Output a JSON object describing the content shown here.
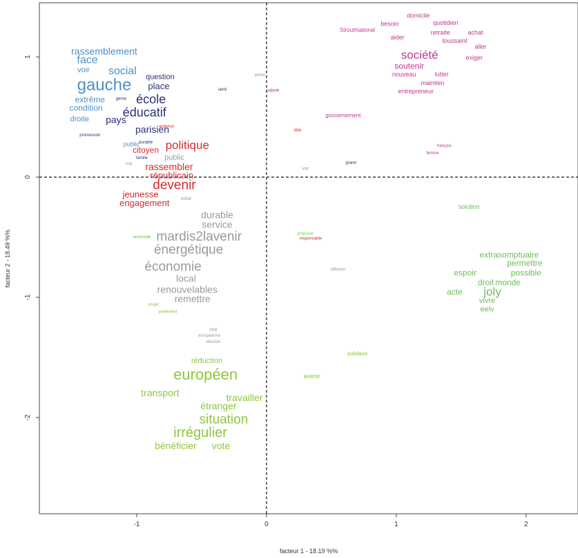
{
  "chart_data": {
    "type": "scatter",
    "title": "",
    "xlabel": "facteur 1 - 18.19 %%",
    "ylabel": "facteur 2 - 18.49 %%",
    "xlim": [
      -1.75,
      2.4
    ],
    "ylim": [
      -2.8,
      1.45
    ],
    "x_ticks": [
      -1,
      0,
      1,
      2
    ],
    "y_ticks": [
      1,
      0,
      -1,
      -2
    ],
    "x_tick_labels": [
      "-1",
      "0",
      "1",
      "2"
    ],
    "y_tick_labels": [
      "1",
      "0",
      "-1",
      "-2"
    ],
    "reference_lines": {
      "x": 0,
      "y": 0,
      "style": "dashed"
    },
    "grid": false,
    "colors": {
      "blue": "#4a90c8",
      "navy": "#2a2f7a",
      "red": "#d42b2b",
      "gray": "#9a9a9a",
      "magenta": "#c2388f",
      "lightgreen": "#6dbb5a",
      "green": "#8ec63f"
    },
    "words": [
      {
        "text": "rassemblement",
        "x": -1.25,
        "y": 1.04,
        "size": 14,
        "color": "blue"
      },
      {
        "text": "face",
        "x": -1.38,
        "y": 0.97,
        "size": 16,
        "color": "blue"
      },
      {
        "text": "social",
        "x": -1.11,
        "y": 0.88,
        "size": 16,
        "color": "blue"
      },
      {
        "text": "voir",
        "x": -1.41,
        "y": 0.89,
        "size": 11,
        "color": "blue"
      },
      {
        "text": "gauche",
        "x": -1.25,
        "y": 0.76,
        "size": 24,
        "color": "blue"
      },
      {
        "text": "question",
        "x": -0.82,
        "y": 0.83,
        "size": 11,
        "color": "navy"
      },
      {
        "text": "place",
        "x": -0.83,
        "y": 0.75,
        "size": 13,
        "color": "navy"
      },
      {
        "text": "extrême",
        "x": -1.36,
        "y": 0.64,
        "size": 12,
        "color": "blue"
      },
      {
        "text": "genre",
        "x": -1.12,
        "y": 0.65,
        "size": 6,
        "color": "navy"
      },
      {
        "text": "école",
        "x": -0.89,
        "y": 0.64,
        "size": 18,
        "color": "navy"
      },
      {
        "text": "condition",
        "x": -1.39,
        "y": 0.57,
        "size": 12,
        "color": "blue"
      },
      {
        "text": "éducatif",
        "x": -0.94,
        "y": 0.53,
        "size": 18,
        "color": "navy"
      },
      {
        "text": "droite",
        "x": -1.44,
        "y": 0.48,
        "size": 11,
        "color": "blue"
      },
      {
        "text": "pays",
        "x": -1.16,
        "y": 0.47,
        "size": 14,
        "color": "navy"
      },
      {
        "text": "parisien",
        "x": -0.88,
        "y": 0.39,
        "size": 14,
        "color": "navy"
      },
      {
        "text": "promouvoir",
        "x": -1.36,
        "y": 0.35,
        "size": 6,
        "color": "navy"
      },
      {
        "text": "violence",
        "x": -0.77,
        "y": 0.42,
        "size": 6,
        "color": "red"
      },
      {
        "text": "public",
        "x": -1.04,
        "y": 0.27,
        "size": 9,
        "color": "blue"
      },
      {
        "text": "durable",
        "x": -0.93,
        "y": 0.29,
        "size": 6,
        "color": "navy"
      },
      {
        "text": "politique",
        "x": -0.61,
        "y": 0.26,
        "size": 17,
        "color": "red"
      },
      {
        "text": "citoyen",
        "x": -0.93,
        "y": 0.22,
        "size": 12,
        "color": "red"
      },
      {
        "text": "famille",
        "x": -0.96,
        "y": 0.16,
        "size": 6,
        "color": "navy"
      },
      {
        "text": "public",
        "x": -0.71,
        "y": 0.16,
        "size": 11,
        "color": "gray"
      },
      {
        "text": "mal",
        "x": -1.06,
        "y": 0.11,
        "size": 6,
        "color": "gray"
      },
      {
        "text": "rassembler",
        "x": -0.75,
        "y": 0.08,
        "size": 14,
        "color": "red"
      },
      {
        "text": "républicain",
        "x": -0.73,
        "y": 0.01,
        "size": 13,
        "color": "red"
      },
      {
        "text": "devenir",
        "x": -0.71,
        "y": -0.07,
        "size": 19,
        "color": "red"
      },
      {
        "text": "jeunesse",
        "x": -0.97,
        "y": -0.15,
        "size": 13,
        "color": "red"
      },
      {
        "text": "engagement",
        "x": -0.94,
        "y": -0.22,
        "size": 13,
        "color": "red"
      },
      {
        "text": "débat",
        "x": -0.62,
        "y": -0.18,
        "size": 6,
        "color": "gray"
      },
      {
        "text": "porter",
        "x": -0.05,
        "y": 0.85,
        "size": 6,
        "color": "gray"
      },
      {
        "text": "semi",
        "x": -0.34,
        "y": 0.73,
        "size": 6,
        "color": "navy"
      },
      {
        "text": "salarié",
        "x": 0.05,
        "y": 0.72,
        "size": 6,
        "color": "red"
      },
      {
        "text": "élite",
        "x": 0.24,
        "y": 0.39,
        "size": 6,
        "color": "red"
      },
      {
        "text": "voir",
        "x": 0.3,
        "y": 0.07,
        "size": 6,
        "color": "gray"
      },
      {
        "text": "grand",
        "x": 0.65,
        "y": 0.12,
        "size": 6,
        "color": "navy"
      },
      {
        "text": "domicile",
        "x": 1.17,
        "y": 1.34,
        "size": 9,
        "color": "magenta"
      },
      {
        "text": "besoin",
        "x": 0.95,
        "y": 1.27,
        "size": 9,
        "color": "magenta"
      },
      {
        "text": "quotidien",
        "x": 1.38,
        "y": 1.28,
        "size": 9,
        "color": "magenta"
      },
      {
        "text": "Strouthiational",
        "x": 0.7,
        "y": 1.22,
        "size": 8,
        "color": "magenta"
      },
      {
        "text": "retraite",
        "x": 1.34,
        "y": 1.2,
        "size": 9,
        "color": "magenta"
      },
      {
        "text": "achat",
        "x": 1.61,
        "y": 1.2,
        "size": 9,
        "color": "magenta"
      },
      {
        "text": "aider",
        "x": 1.01,
        "y": 1.16,
        "size": 9,
        "color": "magenta"
      },
      {
        "text": "toussaint",
        "x": 1.45,
        "y": 1.13,
        "size": 9,
        "color": "magenta"
      },
      {
        "text": "aller",
        "x": 1.65,
        "y": 1.08,
        "size": 9,
        "color": "magenta"
      },
      {
        "text": "société",
        "x": 1.18,
        "y": 1.01,
        "size": 17,
        "color": "magenta"
      },
      {
        "text": "exiger",
        "x": 1.6,
        "y": 0.99,
        "size": 9,
        "color": "magenta"
      },
      {
        "text": "soutenir",
        "x": 1.1,
        "y": 0.92,
        "size": 12,
        "color": "magenta"
      },
      {
        "text": "nouveau",
        "x": 1.06,
        "y": 0.85,
        "size": 9,
        "color": "magenta"
      },
      {
        "text": "lutter",
        "x": 1.35,
        "y": 0.85,
        "size": 9,
        "color": "magenta"
      },
      {
        "text": "maintien",
        "x": 1.28,
        "y": 0.78,
        "size": 9,
        "color": "magenta"
      },
      {
        "text": "entrepreneur",
        "x": 1.15,
        "y": 0.71,
        "size": 9,
        "color": "magenta"
      },
      {
        "text": "gouvernement",
        "x": 0.59,
        "y": 0.51,
        "size": 8,
        "color": "magenta"
      },
      {
        "text": "français",
        "x": 1.37,
        "y": 0.26,
        "size": 6,
        "color": "magenta"
      },
      {
        "text": "femme",
        "x": 1.28,
        "y": 0.2,
        "size": 6,
        "color": "magenta"
      },
      {
        "text": "durable",
        "x": -0.38,
        "y": -0.32,
        "size": 14,
        "color": "gray"
      },
      {
        "text": "service",
        "x": -0.38,
        "y": -0.4,
        "size": 14,
        "color": "gray"
      },
      {
        "text": "mardis2lavenir",
        "x": -0.52,
        "y": -0.5,
        "size": 19,
        "color": "gray"
      },
      {
        "text": "énergétique",
        "x": -0.6,
        "y": -0.61,
        "size": 19,
        "color": "gray"
      },
      {
        "text": "économie",
        "x": -0.72,
        "y": -0.75,
        "size": 19,
        "color": "gray"
      },
      {
        "text": "local",
        "x": -0.62,
        "y": -0.85,
        "size": 14,
        "color": "gray"
      },
      {
        "text": "renouvelables",
        "x": -0.61,
        "y": -0.94,
        "size": 14,
        "color": "gray"
      },
      {
        "text": "remettre",
        "x": -0.57,
        "y": -1.02,
        "size": 14,
        "color": "gray"
      },
      {
        "text": "ensemble",
        "x": -0.96,
        "y": -0.5,
        "size": 6,
        "color": "lightgreen"
      },
      {
        "text": "proposer",
        "x": 0.3,
        "y": -0.47,
        "size": 6,
        "color": "green"
      },
      {
        "text": "responsable",
        "x": 0.34,
        "y": -0.51,
        "size": 6,
        "color": "red"
      },
      {
        "text": "différent",
        "x": 0.55,
        "y": -0.77,
        "size": 6,
        "color": "gray"
      },
      {
        "text": "projet",
        "x": -0.87,
        "y": -1.06,
        "size": 6,
        "color": "green"
      },
      {
        "text": "parlement",
        "x": -0.76,
        "y": -1.12,
        "size": 6,
        "color": "green"
      },
      {
        "text": "total",
        "x": -0.41,
        "y": -1.27,
        "size": 6,
        "color": "gray"
      },
      {
        "text": "européenne",
        "x": -0.44,
        "y": -1.32,
        "size": 6,
        "color": "gray"
      },
      {
        "text": "élection",
        "x": -0.41,
        "y": -1.37,
        "size": 6,
        "color": "gray"
      },
      {
        "text": "solution",
        "x": 1.56,
        "y": -0.25,
        "size": 9,
        "color": "lightgreen"
      },
      {
        "text": "extrasomptuaire",
        "x": 1.87,
        "y": -0.65,
        "size": 12,
        "color": "lightgreen"
      },
      {
        "text": "permettre",
        "x": 1.99,
        "y": -0.72,
        "size": 12,
        "color": "lightgreen"
      },
      {
        "text": "espoir",
        "x": 1.53,
        "y": -0.8,
        "size": 12,
        "color": "lightgreen"
      },
      {
        "text": "possible",
        "x": 2.0,
        "y": -0.8,
        "size": 12,
        "color": "lightgreen"
      },
      {
        "text": "droit",
        "x": 1.69,
        "y": -0.88,
        "size": 12,
        "color": "lightgreen"
      },
      {
        "text": "monde",
        "x": 1.86,
        "y": -0.88,
        "size": 12,
        "color": "lightgreen"
      },
      {
        "text": "acte",
        "x": 1.45,
        "y": -0.96,
        "size": 12,
        "color": "lightgreen"
      },
      {
        "text": "joly",
        "x": 1.74,
        "y": -0.96,
        "size": 17,
        "color": "lightgreen"
      },
      {
        "text": "vivre",
        "x": 1.7,
        "y": -1.03,
        "size": 11,
        "color": "lightgreen"
      },
      {
        "text": "eelv",
        "x": 1.7,
        "y": -1.1,
        "size": 11,
        "color": "lightgreen"
      },
      {
        "text": "solidaire",
        "x": 0.7,
        "y": -1.47,
        "size": 8,
        "color": "green"
      },
      {
        "text": "avenir",
        "x": 0.35,
        "y": -1.66,
        "size": 9,
        "color": "green"
      },
      {
        "text": "réduction",
        "x": -0.46,
        "y": -1.53,
        "size": 11,
        "color": "green"
      },
      {
        "text": "européen",
        "x": -0.47,
        "y": -1.65,
        "size": 22,
        "color": "green"
      },
      {
        "text": "transport",
        "x": -0.82,
        "y": -1.8,
        "size": 14,
        "color": "green"
      },
      {
        "text": "travailler",
        "x": -0.17,
        "y": -1.84,
        "size": 14,
        "color": "green"
      },
      {
        "text": "étranger",
        "x": -0.37,
        "y": -1.91,
        "size": 14,
        "color": "green"
      },
      {
        "text": "situation",
        "x": -0.33,
        "y": -2.02,
        "size": 19,
        "color": "green"
      },
      {
        "text": "irrégulier",
        "x": -0.51,
        "y": -2.13,
        "size": 20,
        "color": "green"
      },
      {
        "text": "bénéficier",
        "x": -0.7,
        "y": -2.24,
        "size": 14,
        "color": "green"
      },
      {
        "text": "vote",
        "x": -0.35,
        "y": -2.24,
        "size": 14,
        "color": "green"
      }
    ]
  }
}
